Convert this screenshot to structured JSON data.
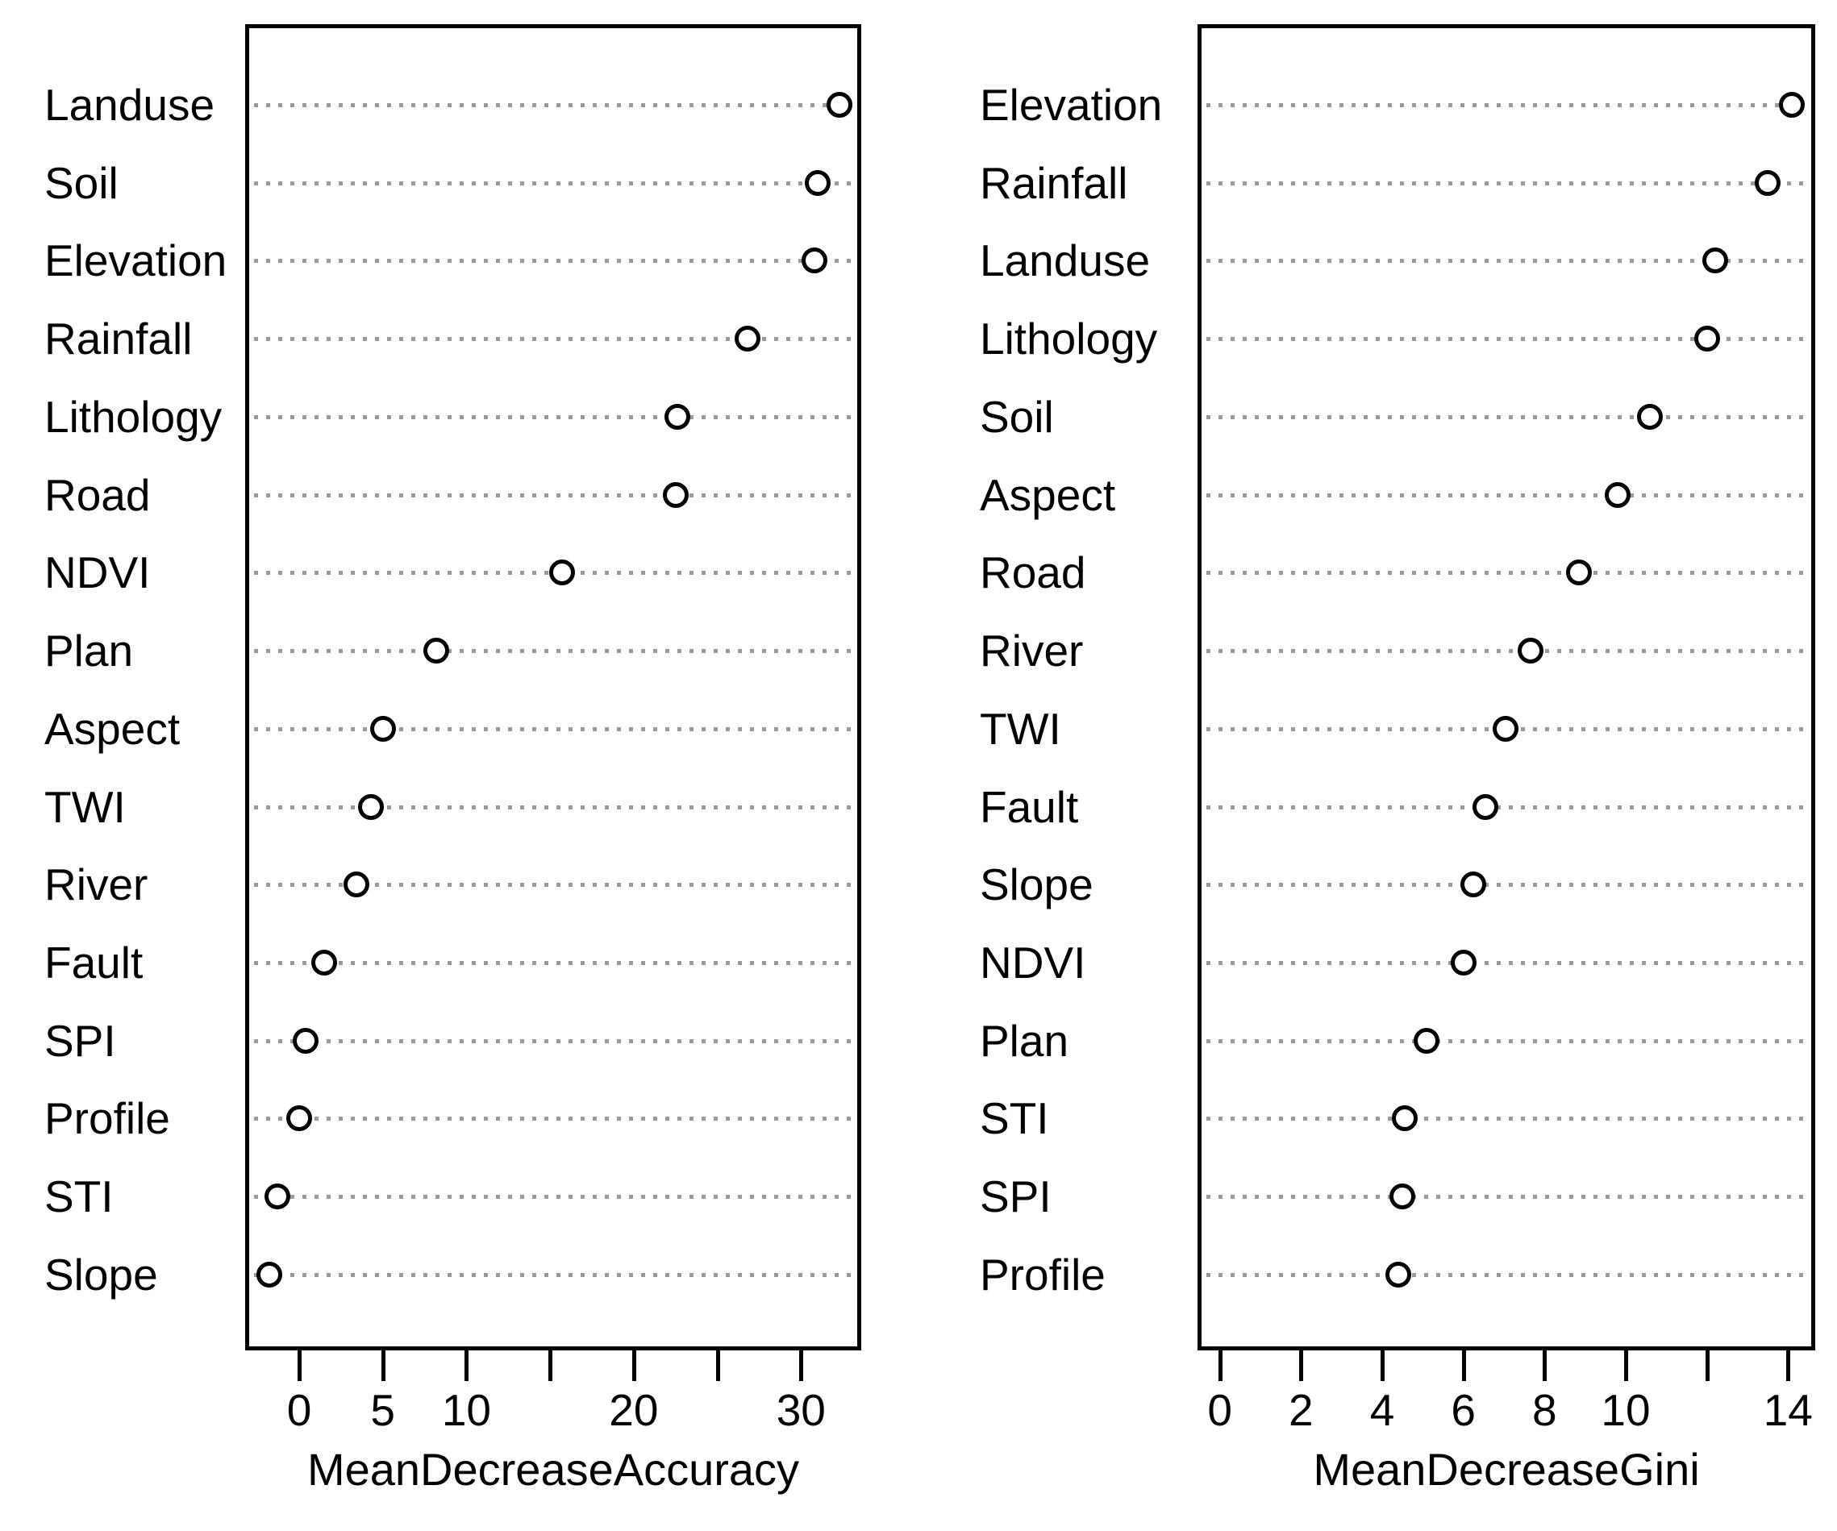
{
  "figure": {
    "background": "#ffffff",
    "text_color": "#000000",
    "gridline_color": "#999999",
    "dot_fill": "#ffffff",
    "dot_stroke": "#000000"
  },
  "chart_data": [
    {
      "type": "scatter",
      "variant": "dotchart",
      "xlabel": "MeanDecreaseAccuracy",
      "categories": [
        "Landuse",
        "Soil",
        "Elevation",
        "Rainfall",
        "Lithology",
        "Road",
        "NDVI",
        "Plan",
        "Aspect",
        "TWI",
        "River",
        "Fault",
        "SPI",
        "Profile",
        "STI",
        "Slope"
      ],
      "values": [
        32.3,
        31.0,
        30.8,
        26.8,
        22.6,
        22.5,
        15.7,
        8.2,
        5.0,
        4.3,
        3.4,
        1.5,
        0.4,
        0.0,
        -1.3,
        -1.8
      ],
      "xlim": [
        -3.23,
        33.6
      ],
      "xticks": [
        0,
        5,
        10,
        15,
        20,
        25,
        30
      ],
      "xtick_labels": [
        "0",
        "5",
        "10",
        "",
        "20",
        "",
        "30"
      ],
      "grid": "dotted-horizontal",
      "legend": "none"
    },
    {
      "type": "scatter",
      "variant": "dotchart",
      "xlabel": "MeanDecreaseGini",
      "categories": [
        "Elevation",
        "Rainfall",
        "Landuse",
        "Lithology",
        "Soil",
        "Aspect",
        "Road",
        "River",
        "TWI",
        "Fault",
        "Slope",
        "NDVI",
        "Plan",
        "STI",
        "SPI",
        "Profile"
      ],
      "values": [
        14.1,
        13.5,
        12.2,
        12.0,
        10.6,
        9.8,
        8.85,
        7.65,
        7.05,
        6.55,
        6.25,
        6.0,
        5.1,
        4.55,
        4.5,
        4.4
      ],
      "xlim": [
        -0.55,
        14.67
      ],
      "xticks": [
        0,
        2,
        4,
        6,
        8,
        10,
        12,
        14
      ],
      "xtick_labels": [
        "0",
        "2",
        "4",
        "6",
        "8",
        "10",
        "",
        "14"
      ],
      "grid": "dotted-horizontal",
      "legend": "none"
    }
  ]
}
